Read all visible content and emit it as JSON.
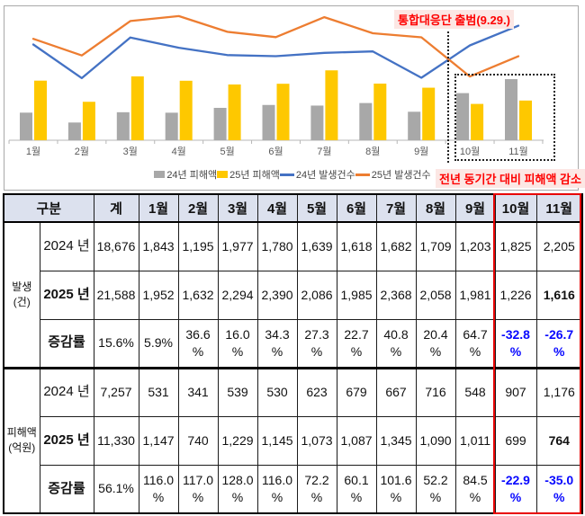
{
  "chart": {
    "annotation_top": "통합대응단 출범(9.29.)",
    "annotation_bottom": "전년 동기간 대비 피해액 감소",
    "annotation_color": "#fe0000",
    "legend": [
      {
        "label": "24년 피해액",
        "swatch": "bar",
        "color": "#a8a8a8"
      },
      {
        "label": "25년 피해액",
        "swatch": "bar",
        "color": "#fec800"
      },
      {
        "label": "24년 발생건수",
        "swatch": "line",
        "color": "#4472c4"
      },
      {
        "label": "25년 발생건수",
        "swatch": "line",
        "color": "#ed7d31"
      }
    ]
  },
  "chart_data": {
    "type": "combo-bar-line",
    "categories": [
      "1월",
      "2월",
      "3월",
      "4월",
      "5월",
      "6월",
      "7월",
      "8월",
      "9월",
      "10월",
      "11월"
    ],
    "series": [
      {
        "name": "24년 피해액",
        "type": "bar",
        "color": "#a8a8a8",
        "values": [
          531,
          341,
          539,
          530,
          623,
          679,
          667,
          716,
          548,
          907,
          1176
        ]
      },
      {
        "name": "25년 피해액",
        "type": "bar",
        "color": "#fec800",
        "values": [
          1147,
          740,
          1229,
          1145,
          1073,
          1087,
          1345,
          1090,
          1011,
          699,
          764
        ]
      },
      {
        "name": "24년 발생건수",
        "type": "line",
        "color": "#4472c4",
        "values": [
          1843,
          1195,
          1977,
          1780,
          1639,
          1618,
          1682,
          1709,
          1203,
          1825,
          2205
        ]
      },
      {
        "name": "25년 발생건수",
        "type": "line",
        "color": "#ed7d31",
        "values": [
          1952,
          1632,
          2294,
          2390,
          2086,
          1985,
          2368,
          2058,
          1981,
          1226,
          1616
        ]
      }
    ],
    "ylim": [
      0,
      2600
    ],
    "grid": false,
    "legend_position": "bottom",
    "annotations": [
      "통합대응단 출범(9.29.)",
      "전년 동기간 대비 피해액 감소"
    ],
    "highlighted_categories": [
      "10월",
      "11월"
    ]
  },
  "table": {
    "corner_label": "구분",
    "columns": [
      "계",
      "1월",
      "2월",
      "3월",
      "4월",
      "5월",
      "6월",
      "7월",
      "8월",
      "9월",
      "10월",
      "11월"
    ],
    "highlight_columns": [
      "10월",
      "11월"
    ],
    "highlight_color": "#e80000",
    "groups": [
      {
        "label": "발생 (건)",
        "rows": [
          {
            "label": "2024 년",
            "label_bold": false,
            "cells": [
              "18,676",
              "1,843",
              "1,195",
              "1,977",
              "1,780",
              "1,639",
              "1,618",
              "1,682",
              "1,709",
              "1,203",
              "1,825",
              "2,205"
            ],
            "bold_cells": [],
            "blue_cells": []
          },
          {
            "label": "2025 년",
            "label_bold": true,
            "cells": [
              "21,588",
              "1,952",
              "1,632",
              "2,294",
              "2,390",
              "2,086",
              "1,985",
              "2,368",
              "2,058",
              "1,981",
              "1,226",
              "1,616"
            ],
            "bold_cells": [
              11
            ],
            "blue_cells": []
          },
          {
            "label": "증감률",
            "label_bold": true,
            "cells": [
              "15.6%",
              "5.9%",
              "36.6 %",
              "16.0 %",
              "34.3 %",
              "27.3 %",
              "22.7 %",
              "40.8 %",
              "20.4 %",
              "64.7 %",
              "-32.8 %",
              "-26.7 %"
            ],
            "bold_cells": [],
            "blue_cells": [
              10,
              11
            ]
          }
        ]
      },
      {
        "label": "피해액 (억원)",
        "rows": [
          {
            "label": "2024 년",
            "label_bold": false,
            "cells": [
              "7,257",
              "531",
              "341",
              "539",
              "530",
              "623",
              "679",
              "667",
              "716",
              "548",
              "907",
              "1,176"
            ],
            "bold_cells": [],
            "blue_cells": []
          },
          {
            "label": "2025 년",
            "label_bold": true,
            "cells": [
              "11,330",
              "1,147",
              "740",
              "1,229",
              "1,145",
              "1,073",
              "1,087",
              "1,345",
              "1,090",
              "1,011",
              "699",
              "764"
            ],
            "bold_cells": [
              11
            ],
            "blue_cells": []
          },
          {
            "label": "증감률",
            "label_bold": true,
            "cells": [
              "56.1%",
              "116.0 %",
              "117.0 %",
              "128.0 %",
              "116.0 %",
              "72.2 %",
              "60.1 %",
              "101.6 %",
              "52.2 %",
              "84.5 %",
              "-22.9 %",
              "-35.0 %"
            ],
            "bold_cells": [],
            "blue_cells": [
              10,
              11
            ]
          }
        ]
      }
    ]
  }
}
